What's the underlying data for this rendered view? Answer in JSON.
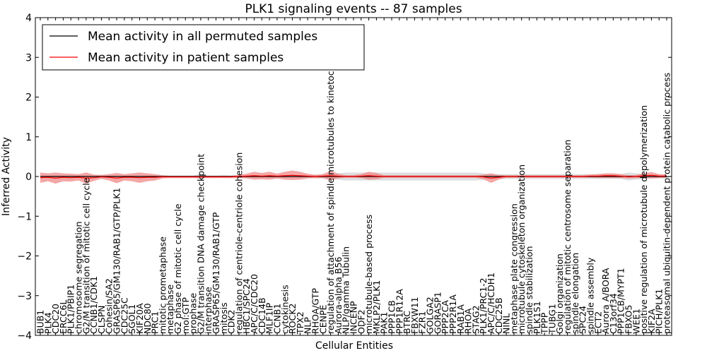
{
  "chart_data": {
    "type": "line",
    "title": "PLK1 signaling events -- 87 samples",
    "xlabel": "Cellular Entities",
    "ylabel": "Inferred Activity",
    "ylim": [
      -4,
      4
    ],
    "yticks": [
      "−4",
      "−3",
      "−2",
      "−1",
      "0",
      "1",
      "2",
      "3",
      "4"
    ],
    "grid": false,
    "legend_position": "top-left",
    "categories": [
      "BUB1",
      "PLK4",
      "CDC20",
      "ERCC6L",
      "PLK1/PBIP1",
      "chromosome segregation",
      "G2/M transition of mitotic cell cycle",
      "CCNB1/CDK1",
      "CLSPN",
      "Cohesin/SA2",
      "GRASP65/GM130/RAB1/GTP/PLK1",
      "CDC25C",
      "SGOL1",
      "KIF20A",
      "NDC80",
      "PRC1",
      "mitotic prometaphase",
      "metaphase",
      "G2 phase of mitotic cell cycle",
      "mol:GTP",
      "prophase",
      "G2/M transition DNA damage checkpoint",
      "interphase",
      "GRASP65/GM130/RAB1/GTP",
      "mitosis",
      "CDK2",
      "regulation of centriole-centriole cohesion",
      "HBC1/SPC24",
      "APC/C/CDC20",
      "CDC14B",
      "MLF1IP",
      "CCNB1",
      "cytokinesis",
      "ROCK2",
      "TPX2",
      "NLP",
      "RHOA/GTP",
      "CENPE",
      "regulation of attachment of spindle microtubules to kinetochore",
      "Aurora-alpha B56",
      "NLP/gamma Tubulin",
      "INCENP",
      "ODF2",
      "microtubule-based process",
      "MKLP2/PLK1",
      "PAK1",
      "PPP1CB",
      "PPP1R12A",
      "BTRC",
      "FBXW11",
      "FZR1",
      "GOLGA2",
      "GORASP1",
      "PPP2CA",
      "PPP2R1A",
      "RAB1A",
      "RHOA",
      "STAG2",
      "PLK1/PRC1-2",
      "APC/C/HCDH1",
      "CDC25B",
      "NINL",
      "metaphase plate congression",
      "microtubule cytoskeleton organization",
      "spindle stabilization",
      "PLK1S1",
      "TPPP",
      "TUBG1",
      "Golgi organization",
      "regulation of mitotic centrosome separation",
      "spindle elongation",
      "SPC24",
      "spindle assembly",
      "ECT2",
      "Aurora A/BORA",
      "C13orf34",
      "PPP1CB/MYPT1",
      "FBXO5",
      "WEE1",
      "positive regulation of microtubule depolymerization",
      "KIF2A",
      "PICH/PLK1",
      "proteasomal ubiquitin-dependent protein catabolic process"
    ],
    "series": [
      {
        "name": "Mean activity in all permuted samples",
        "color": "#000000",
        "values": [
          0.0,
          0.0,
          0.0,
          0.0,
          0.0,
          0.0,
          0.0,
          0.0,
          0.0,
          0.0,
          0.0,
          0.0,
          0.0,
          0.0,
          0.0,
          0.0,
          0.0,
          0.0,
          0.0,
          0.0,
          0.0,
          0.0,
          0.0,
          0.0,
          0.0,
          0.0,
          0.0,
          0.0,
          0.0,
          0.0,
          0.0,
          0.0,
          0.0,
          0.0,
          0.0,
          0.0,
          0.0,
          0.0,
          0.0,
          0.0,
          0.0,
          0.0,
          0.0,
          0.0,
          0.0,
          0.0,
          0.0,
          0.0,
          0.0,
          0.0,
          0.0,
          0.0,
          0.0,
          0.0,
          0.0,
          0.0,
          0.0,
          0.0,
          0.0,
          0.0,
          0.0,
          0.0,
          0.0,
          0.0,
          0.0,
          0.0,
          0.0,
          0.0,
          0.0,
          0.0,
          0.0,
          0.0,
          0.0,
          0.0,
          0.0,
          0.0,
          0.0,
          0.0,
          0.0,
          0.0,
          0.0,
          0.0,
          0.0
        ],
        "band": [
          0.02,
          0.02,
          0.03,
          0.02,
          0.02,
          0.02,
          0.03,
          0.02,
          0.02,
          0.02,
          0.02,
          0.02,
          0.02,
          0.02,
          0.02,
          0.02,
          0.02,
          0.02,
          0.02,
          0.02,
          0.02,
          0.08,
          0.02,
          0.02,
          0.03,
          0.02,
          0.03,
          0.03,
          0.03,
          0.03,
          0.03,
          0.03,
          0.03,
          0.03,
          0.03,
          0.03,
          0.05,
          0.05,
          0.06,
          0.08,
          0.1,
          0.1,
          0.1,
          0.1,
          0.1,
          0.1,
          0.1,
          0.1,
          0.1,
          0.1,
          0.1,
          0.1,
          0.1,
          0.1,
          0.1,
          0.1,
          0.1,
          0.1,
          0.08,
          0.06,
          0.06,
          0.06,
          0.06,
          0.06,
          0.06,
          0.06,
          0.06,
          0.06,
          0.06,
          0.06,
          0.06,
          0.06,
          0.06,
          0.06,
          0.06,
          0.06,
          0.06,
          0.1,
          0.08,
          0.06,
          0.05,
          0.05,
          0.05
        ]
      },
      {
        "name": "Mean activity in patient samples",
        "color": "#ff0000",
        "values": [
          -0.03,
          -0.02,
          -0.04,
          -0.02,
          -0.03,
          -0.02,
          -0.04,
          -0.03,
          -0.01,
          -0.02,
          -0.04,
          -0.02,
          -0.02,
          -0.03,
          -0.02,
          -0.02,
          -0.01,
          -0.01,
          -0.01,
          -0.01,
          -0.01,
          -0.01,
          -0.01,
          -0.01,
          -0.01,
          -0.01,
          0.0,
          0.01,
          0.02,
          0.01,
          0.02,
          0.01,
          0.02,
          0.03,
          0.02,
          0.01,
          0.0,
          0.01,
          0.02,
          0.01,
          0.0,
          0.0,
          0.01,
          0.02,
          0.01,
          0.0,
          0.0,
          0.0,
          0.0,
          0.0,
          0.0,
          0.0,
          0.0,
          0.0,
          0.0,
          0.0,
          0.0,
          0.0,
          -0.01,
          -0.04,
          -0.02,
          0.0,
          0.0,
          0.0,
          0.0,
          0.0,
          0.0,
          0.0,
          0.0,
          0.0,
          0.0,
          0.0,
          0.01,
          0.01,
          0.02,
          0.02,
          0.01,
          -0.01,
          0.0,
          0.02,
          0.03,
          0.01,
          0.01
        ],
        "band": [
          0.13,
          0.1,
          0.14,
          0.1,
          0.1,
          0.08,
          0.14,
          0.08,
          0.05,
          0.08,
          0.13,
          0.08,
          0.1,
          0.13,
          0.1,
          0.08,
          0.04,
          0.03,
          0.03,
          0.03,
          0.03,
          0.03,
          0.03,
          0.03,
          0.03,
          0.03,
          0.04,
          0.06,
          0.1,
          0.08,
          0.1,
          0.06,
          0.1,
          0.12,
          0.1,
          0.06,
          0.04,
          0.05,
          0.12,
          0.06,
          0.03,
          0.03,
          0.05,
          0.1,
          0.08,
          0.03,
          0.03,
          0.03,
          0.03,
          0.03,
          0.03,
          0.03,
          0.03,
          0.03,
          0.03,
          0.03,
          0.03,
          0.03,
          0.06,
          0.12,
          0.06,
          0.03,
          0.03,
          0.03,
          0.03,
          0.03,
          0.03,
          0.03,
          0.03,
          0.03,
          0.03,
          0.03,
          0.04,
          0.05,
          0.06,
          0.06,
          0.05,
          0.04,
          0.04,
          0.06,
          0.08,
          0.05,
          0.04
        ]
      }
    ]
  },
  "colors": {
    "patient_fill": "#f08080",
    "permuted_fill": "#c8c8c8"
  }
}
